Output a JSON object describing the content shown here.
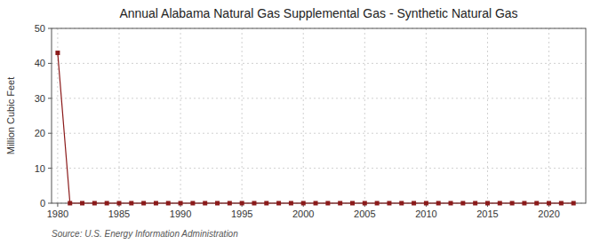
{
  "chart_data": {
    "type": "line",
    "title": "Annual Alabama Natural Gas Supplemental Gas - Synthetic Natural Gas",
    "y_label": "Million Cubic Feet",
    "annotations": [
      "Source: U.S. Energy Information Administration"
    ],
    "x": [
      1980,
      1981,
      1982,
      1983,
      1984,
      1985,
      1986,
      1987,
      1988,
      1989,
      1990,
      1991,
      1992,
      1993,
      1994,
      1995,
      1996,
      1997,
      1998,
      1999,
      2000,
      2001,
      2002,
      2003,
      2004,
      2005,
      2006,
      2007,
      2008,
      2009,
      2010,
      2011,
      2012,
      2013,
      2014,
      2015,
      2016,
      2017,
      2018,
      2019,
      2020,
      2021,
      2022
    ],
    "values": [
      43,
      0,
      0,
      0,
      0,
      0,
      0,
      0,
      0,
      0,
      0,
      0,
      0,
      0,
      0,
      0,
      0,
      0,
      0,
      0,
      0,
      0,
      0,
      0,
      0,
      0,
      0,
      0,
      0,
      0,
      0,
      0,
      0,
      0,
      0,
      0,
      0,
      0,
      0,
      0,
      0,
      0,
      0
    ],
    "color": "#8b1a1a",
    "marker": "square",
    "xlim": [
      1979.5,
      2023
    ],
    "ylim": [
      0,
      50
    ],
    "xticks": [
      1980,
      1985,
      1990,
      1995,
      2000,
      2005,
      2010,
      2015,
      2020
    ],
    "yticks": [
      0,
      10,
      20,
      30,
      40,
      50
    ],
    "grid": true
  }
}
